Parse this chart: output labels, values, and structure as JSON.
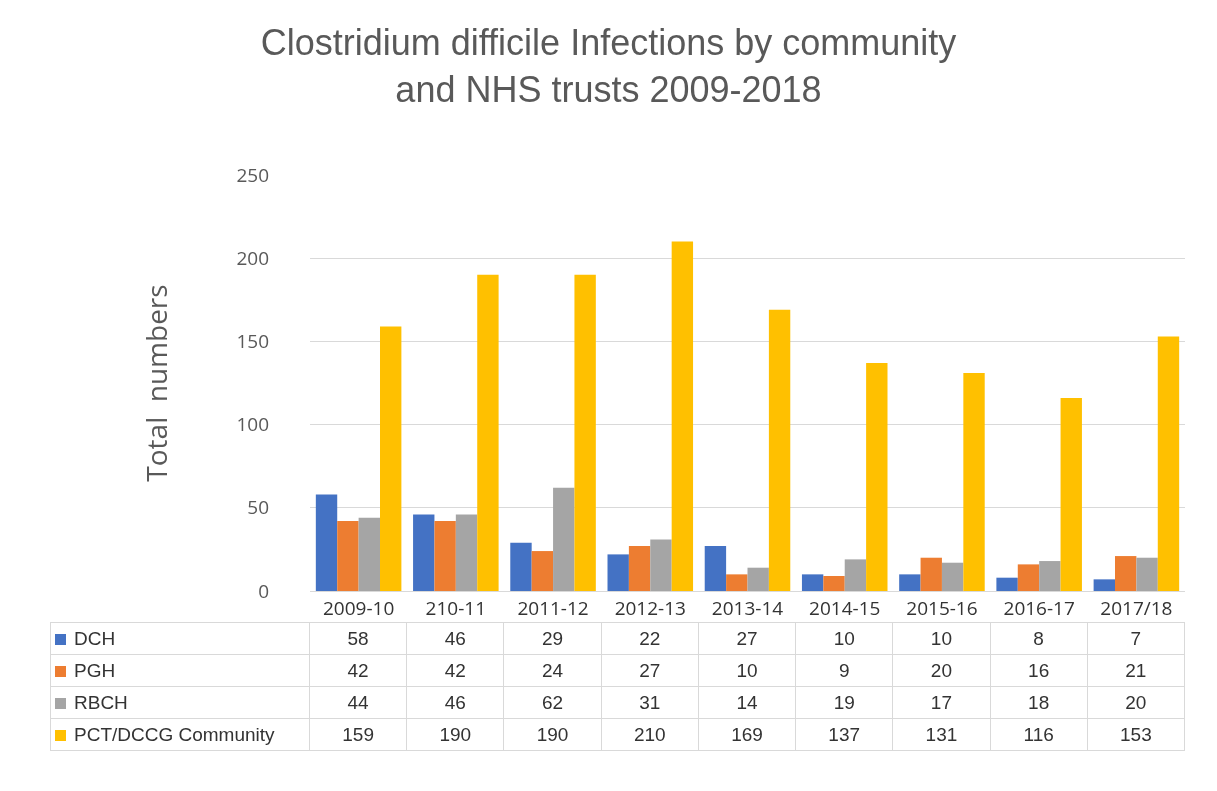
{
  "chart_data": {
    "type": "bar",
    "title": "Clostridium difficile Infections by community\nand NHS trusts 2009-2018",
    "ylabel": "Total  numbers",
    "categories": [
      "2009-10",
      "210-11",
      "2011-12",
      "2012-13",
      "2013-14",
      "2014-15",
      "2015-16",
      "2016-17",
      "2017/18"
    ],
    "series": [
      {
        "name": "DCH",
        "color": "#4472c4",
        "values": [
          58,
          46,
          29,
          22,
          27,
          10,
          10,
          8,
          7
        ]
      },
      {
        "name": "PGH",
        "color": "#ed7d31",
        "values": [
          42,
          42,
          24,
          27,
          10,
          9,
          20,
          16,
          21
        ]
      },
      {
        "name": "RBCH",
        "color": "#a5a5a5",
        "values": [
          44,
          46,
          62,
          31,
          14,
          19,
          17,
          18,
          20
        ]
      },
      {
        "name": "PCT/DCCG Community",
        "color": "#ffc000",
        "values": [
          159,
          190,
          190,
          210,
          169,
          137,
          131,
          116,
          153
        ]
      }
    ],
    "ylim": [
      0,
      250
    ],
    "yticks": [
      0,
      50,
      100,
      150,
      200,
      250
    ],
    "grid": "y",
    "legend": "bottom",
    "data_labels": true
  }
}
